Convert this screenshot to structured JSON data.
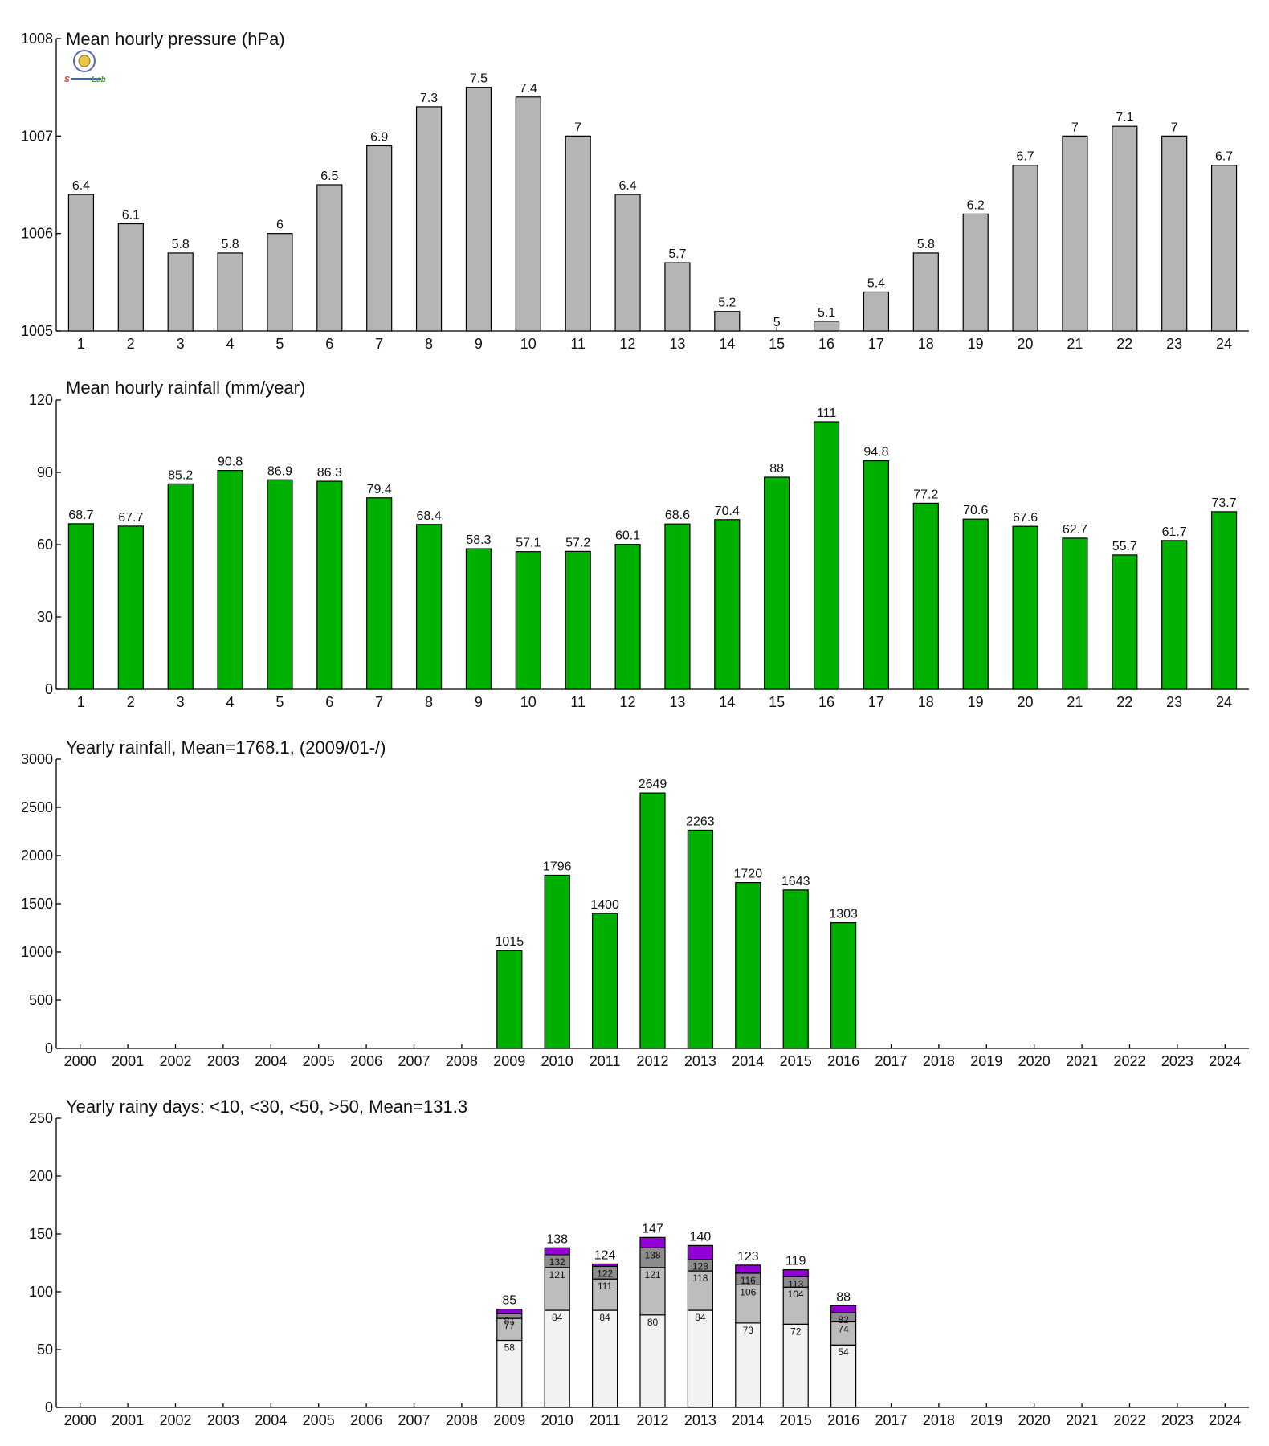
{
  "colors": {
    "gray_bar": "#b5b5b5",
    "green_bar": "#00b000",
    "seg_lt10": "#f2f2f2",
    "seg_lt30": "#bdbdbd",
    "seg_lt50": "#8c8c8c",
    "seg_gt50": "#9400d3"
  },
  "logo": {
    "text_left": "S",
    "text_right": "Lab"
  },
  "chart_data": [
    {
      "id": "pressure",
      "type": "bar",
      "title": "Mean hourly pressure (hPa)",
      "categories": [
        "1",
        "2",
        "3",
        "4",
        "5",
        "6",
        "7",
        "8",
        "9",
        "10",
        "11",
        "12",
        "13",
        "14",
        "15",
        "16",
        "17",
        "18",
        "19",
        "20",
        "21",
        "22",
        "23",
        "24"
      ],
      "values": [
        1006.4,
        1006.1,
        1005.8,
        1005.8,
        1006.0,
        1006.5,
        1006.9,
        1007.3,
        1007.5,
        1007.4,
        1007.0,
        1006.4,
        1005.7,
        1005.2,
        1005.0,
        1005.1,
        1005.4,
        1005.8,
        1006.2,
        1006.7,
        1007.0,
        1007.1,
        1007.0,
        1006.7
      ],
      "labels": [
        "6.4",
        "6.1",
        "5.8",
        "5.8",
        "6",
        "6.5",
        "6.9",
        "7.3",
        "7.5",
        "7.4",
        "7",
        "6.4",
        "5.7",
        "5.2",
        "5",
        "5.1",
        "5.4",
        "5.8",
        "6.2",
        "6.7",
        "7",
        "7.1",
        "7",
        "6.7"
      ],
      "ylim": [
        1005,
        1008
      ],
      "yticks": [
        "1005",
        "1006",
        "1007",
        "1008"
      ],
      "color": "#b5b5b5"
    },
    {
      "id": "hourly-rainfall",
      "type": "bar",
      "title": "Mean hourly rainfall (mm/year)",
      "categories": [
        "1",
        "2",
        "3",
        "4",
        "5",
        "6",
        "7",
        "8",
        "9",
        "10",
        "11",
        "12",
        "13",
        "14",
        "15",
        "16",
        "17",
        "18",
        "19",
        "20",
        "21",
        "22",
        "23",
        "24"
      ],
      "values": [
        68.7,
        67.7,
        85.2,
        90.8,
        86.9,
        86.3,
        79.4,
        68.4,
        58.3,
        57.1,
        57.2,
        60.1,
        68.6,
        70.4,
        88,
        111,
        94.8,
        77.2,
        70.6,
        67.6,
        62.7,
        55.7,
        61.7,
        73.7
      ],
      "labels": [
        "68.7",
        "67.7",
        "85.2",
        "90.8",
        "86.9",
        "86.3",
        "79.4",
        "68.4",
        "58.3",
        "57.1",
        "57.2",
        "60.1",
        "68.6",
        "70.4",
        "88",
        "111",
        "94.8",
        "77.2",
        "70.6",
        "67.6",
        "62.7",
        "55.7",
        "61.7",
        "73.7"
      ],
      "ylim": [
        0,
        120
      ],
      "yticks": [
        "0",
        "30",
        "60",
        "90",
        "120"
      ],
      "color": "#00b000"
    },
    {
      "id": "yearly-rainfall",
      "type": "bar",
      "title": "Yearly rainfall, Mean=1768.1, (2009/01-/)",
      "categories": [
        "2000",
        "2001",
        "2002",
        "2003",
        "2004",
        "2005",
        "2006",
        "2007",
        "2008",
        "2009",
        "2010",
        "2011",
        "2012",
        "2013",
        "2014",
        "2015",
        "2016",
        "2017",
        "2018",
        "2019",
        "2020",
        "2021",
        "2022",
        "2023",
        "2024"
      ],
      "values": [
        null,
        null,
        null,
        null,
        null,
        null,
        null,
        null,
        null,
        1015,
        1796,
        1400,
        2649,
        2263,
        1720,
        1643,
        1303,
        null,
        null,
        null,
        null,
        null,
        null,
        null,
        null
      ],
      "labels": [
        "",
        "",
        "",
        "",
        "",
        "",
        "",
        "",
        "",
        "1015",
        "1796",
        "1400",
        "2649",
        "2263",
        "1720",
        "1643",
        "1303",
        "",
        "",
        "",
        "",
        "",
        "",
        "",
        ""
      ],
      "ylim": [
        0,
        3000
      ],
      "yticks": [
        "0",
        "500",
        "1000",
        "1500",
        "2000",
        "2500",
        "3000"
      ],
      "color": "#00b000"
    },
    {
      "id": "rainy-days",
      "type": "bar",
      "stacked": true,
      "title": "Yearly rainy days: <10, <30, <50, >50, Mean=131.3",
      "categories": [
        "2000",
        "2001",
        "2002",
        "2003",
        "2004",
        "2005",
        "2006",
        "2007",
        "2008",
        "2009",
        "2010",
        "2011",
        "2012",
        "2013",
        "2014",
        "2015",
        "2016",
        "2017",
        "2018",
        "2019",
        "2020",
        "2021",
        "2022",
        "2023",
        "2024"
      ],
      "ylim": [
        0,
        250
      ],
      "yticks": [
        "0",
        "50",
        "100",
        "150",
        "200",
        "250"
      ],
      "bars": [
        {
          "index": 9,
          "total": 85,
          "label": "85",
          "cum": [
            58,
            77,
            81,
            85
          ],
          "seglabels": [
            "58",
            "77",
            "81"
          ]
        },
        {
          "index": 10,
          "total": 138,
          "label": "138",
          "cum": [
            84,
            121,
            132,
            138
          ],
          "seglabels": [
            "84",
            "121",
            "132"
          ]
        },
        {
          "index": 11,
          "total": 124,
          "label": "124",
          "cum": [
            84,
            111,
            122,
            124
          ],
          "seglabels": [
            "84",
            "111",
            "122"
          ]
        },
        {
          "index": 12,
          "total": 147,
          "label": "147",
          "cum": [
            80,
            121,
            138,
            147
          ],
          "seglabels": [
            "80",
            "121",
            "138"
          ]
        },
        {
          "index": 13,
          "total": 140,
          "label": "140",
          "cum": [
            84,
            118,
            128,
            140
          ],
          "seglabels": [
            "84",
            "118",
            "128"
          ]
        },
        {
          "index": 14,
          "total": 123,
          "label": "123",
          "cum": [
            73,
            106,
            116,
            123
          ],
          "seglabels": [
            "73",
            "106",
            "116"
          ]
        },
        {
          "index": 15,
          "total": 119,
          "label": "119",
          "cum": [
            72,
            104,
            113,
            119
          ],
          "seglabels": [
            "72",
            "104",
            "113"
          ]
        },
        {
          "index": 16,
          "total": 88,
          "label": "88",
          "cum": [
            54,
            74,
            82,
            88
          ],
          "seglabels": [
            "54",
            "74",
            "82"
          ]
        }
      ]
    }
  ]
}
